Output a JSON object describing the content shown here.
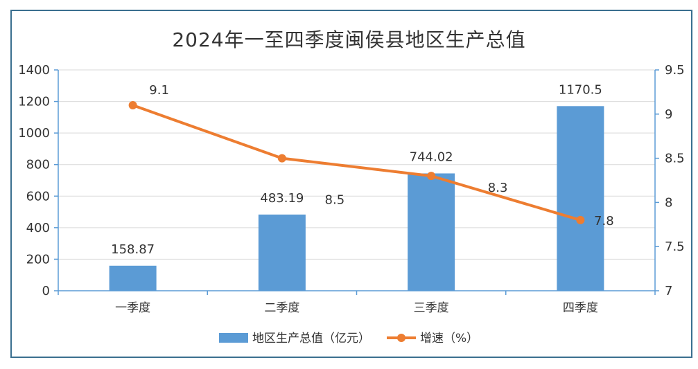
{
  "chart_data": {
    "type": "bar",
    "title": "2024年一至四季度闽侯县地区生产总值",
    "categories": [
      "一季度",
      "二季度",
      "三季度",
      "四季度"
    ],
    "series": [
      {
        "name": "地区生产总值（亿元）",
        "type": "bar",
        "axis": "left",
        "values": [
          158.87,
          483.19,
          744.02,
          1170.5
        ],
        "labels": [
          "158.87",
          "483.19",
          "744.02",
          "1170.5"
        ]
      },
      {
        "name": "增速（%）",
        "type": "line",
        "axis": "right",
        "values": [
          9.1,
          8.5,
          8.3,
          7.8
        ],
        "labels": [
          "9.1",
          "8.5",
          "8.3",
          "7.8"
        ]
      }
    ],
    "y_left": {
      "min": 0,
      "max": 1400,
      "ticks": [
        "0",
        "200",
        "400",
        "600",
        "800",
        "1000",
        "1200",
        "1400"
      ]
    },
    "y_right": {
      "min": 7,
      "max": 9.5,
      "ticks": [
        "7",
        "7.5",
        "8",
        "8.5",
        "9",
        "9.5"
      ]
    },
    "grid": true,
    "legend_position": "bottom",
    "colors": {
      "bar": "#5b9bd5",
      "line": "#ed7d31",
      "axis": "#5b9bd5",
      "grid": "#d9d9d9"
    }
  }
}
